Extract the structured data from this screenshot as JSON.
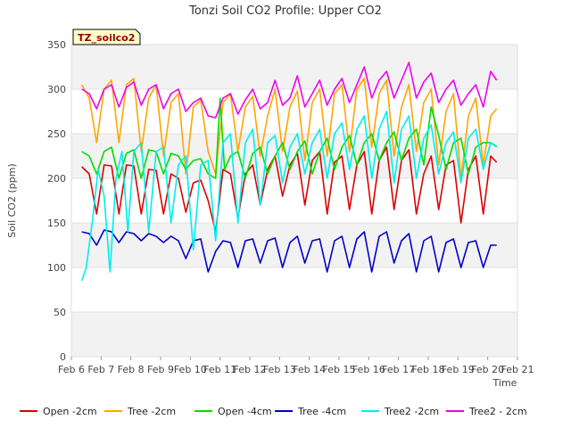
{
  "chart_data": {
    "type": "line",
    "title": "Tonzi Soil CO2 Profile: Upper CO2",
    "xlabel": "Time",
    "ylabel": "Soil CO2 (ppm)",
    "ylim": [
      0,
      350
    ],
    "yticks": [
      0,
      50,
      100,
      150,
      200,
      250,
      300,
      350
    ],
    "xlim": [
      "2019-02-06",
      "2019-02-21"
    ],
    "xticks": [
      "Feb 6",
      "Feb 7",
      "Feb 8",
      "Feb 9",
      "Feb 10",
      "Feb 11",
      "Feb 12",
      "Feb 13",
      "Feb 14",
      "Feb 15",
      "Feb 16",
      "Feb 17",
      "Feb 18",
      "Feb 19",
      "Feb 20",
      "Feb 21"
    ],
    "grid": "horizontal bands",
    "legend_position": "bottom",
    "annotation": "TZ_soilco2",
    "series": [
      {
        "name": "Open -2cm",
        "color": "#dd0000",
        "x": [
          6.35,
          6.6,
          6.85,
          7.1,
          7.35,
          7.6,
          7.85,
          8.1,
          8.35,
          8.6,
          8.85,
          9.1,
          9.35,
          9.6,
          9.85,
          10.1,
          10.35,
          10.6,
          10.85,
          11.1,
          11.35,
          11.6,
          11.85,
          12.1,
          12.35,
          12.6,
          12.85,
          13.1,
          13.35,
          13.6,
          13.85,
          14.1,
          14.35,
          14.6,
          14.85,
          15.1,
          15.35,
          15.6,
          15.85,
          16.1,
          16.35,
          16.6,
          16.85,
          17.1,
          17.35,
          17.6,
          17.85,
          18.1,
          18.35,
          18.6,
          18.85,
          19.1,
          19.35,
          19.6,
          19.85,
          20.1,
          20.3
        ],
        "y": [
          213,
          205,
          160,
          215,
          214,
          160,
          215,
          214,
          160,
          210,
          209,
          160,
          205,
          200,
          162,
          195,
          198,
          175,
          140,
          210,
          205,
          155,
          205,
          215,
          170,
          210,
          225,
          180,
          215,
          228,
          170,
          220,
          230,
          160,
          218,
          225,
          165,
          215,
          230,
          160,
          220,
          235,
          165,
          220,
          232,
          160,
          205,
          225,
          165,
          215,
          220,
          150,
          210,
          225,
          160,
          225,
          218
        ]
      },
      {
        "name": "Tree -2cm",
        "color": "#ffa500",
        "x": [
          6.35,
          6.6,
          6.85,
          7.1,
          7.35,
          7.6,
          7.85,
          8.1,
          8.35,
          8.6,
          8.85,
          9.1,
          9.35,
          9.6,
          9.85,
          10.1,
          10.35,
          10.6,
          10.85,
          11.1,
          11.35,
          11.6,
          11.85,
          12.1,
          12.35,
          12.6,
          12.85,
          13.1,
          13.35,
          13.6,
          13.85,
          14.1,
          14.35,
          14.6,
          14.85,
          15.1,
          15.35,
          15.6,
          15.85,
          16.1,
          16.35,
          16.6,
          16.85,
          17.1,
          17.35,
          17.6,
          17.85,
          18.1,
          18.35,
          18.6,
          18.85,
          19.1,
          19.35,
          19.6,
          19.85,
          20.1,
          20.3
        ],
        "y": [
          305,
          290,
          240,
          300,
          310,
          240,
          305,
          312,
          230,
          290,
          305,
          225,
          285,
          295,
          205,
          280,
          288,
          230,
          205,
          285,
          295,
          230,
          280,
          292,
          225,
          270,
          300,
          230,
          280,
          298,
          220,
          285,
          300,
          225,
          295,
          305,
          230,
          300,
          312,
          235,
          295,
          310,
          225,
          280,
          305,
          230,
          285,
          300,
          215,
          275,
          295,
          200,
          270,
          290,
          215,
          270,
          278
        ]
      },
      {
        "name": "Open -4cm",
        "color": "#00dd00",
        "x": [
          6.35,
          6.6,
          6.85,
          7.1,
          7.35,
          7.6,
          7.85,
          8.1,
          8.35,
          8.6,
          8.85,
          9.1,
          9.35,
          9.6,
          9.85,
          10.1,
          10.35,
          10.6,
          10.85,
          11.0,
          11.15,
          11.35,
          11.6,
          11.85,
          12.1,
          12.35,
          12.6,
          12.85,
          13.1,
          13.35,
          13.6,
          13.85,
          14.1,
          14.35,
          14.6,
          14.85,
          15.1,
          15.35,
          15.6,
          15.85,
          16.1,
          16.35,
          16.6,
          16.85,
          17.1,
          17.35,
          17.6,
          17.85,
          18.1,
          18.35,
          18.6,
          18.85,
          19.1,
          19.35,
          19.6,
          19.85,
          20.1,
          20.3
        ],
        "y": [
          230,
          225,
          205,
          230,
          235,
          200,
          228,
          232,
          200,
          232,
          230,
          205,
          228,
          225,
          210,
          220,
          222,
          205,
          200,
          290,
          210,
          225,
          230,
          200,
          228,
          235,
          205,
          225,
          240,
          210,
          230,
          242,
          205,
          230,
          245,
          210,
          235,
          248,
          215,
          240,
          250,
          220,
          240,
          252,
          220,
          245,
          255,
          215,
          280,
          248,
          210,
          240,
          245,
          205,
          235,
          240,
          240,
          236
        ]
      },
      {
        "name": "Tree -4cm",
        "color": "#0000cc",
        "x": [
          6.35,
          6.6,
          6.85,
          7.1,
          7.35,
          7.6,
          7.85,
          8.1,
          8.35,
          8.6,
          8.85,
          9.1,
          9.35,
          9.6,
          9.85,
          10.1,
          10.35,
          10.6,
          10.85,
          11.1,
          11.35,
          11.6,
          11.85,
          12.1,
          12.35,
          12.6,
          12.85,
          13.1,
          13.35,
          13.6,
          13.85,
          14.1,
          14.35,
          14.6,
          14.85,
          15.1,
          15.35,
          15.6,
          15.85,
          16.1,
          16.35,
          16.6,
          16.85,
          17.1,
          17.35,
          17.6,
          17.85,
          18.1,
          18.35,
          18.6,
          18.85,
          19.1,
          19.35,
          19.6,
          19.85,
          20.1,
          20.3
        ],
        "y": [
          140,
          138,
          125,
          142,
          140,
          128,
          140,
          138,
          130,
          138,
          135,
          128,
          135,
          130,
          110,
          130,
          132,
          95,
          118,
          130,
          128,
          100,
          130,
          132,
          105,
          130,
          133,
          100,
          128,
          135,
          105,
          130,
          132,
          95,
          130,
          135,
          100,
          132,
          140,
          95,
          135,
          140,
          105,
          130,
          138,
          95,
          130,
          135,
          95,
          128,
          132,
          100,
          128,
          130,
          100,
          125,
          125
        ]
      },
      {
        "name": "Tree2 -2cm",
        "color": "#00eeee",
        "x": [
          6.35,
          6.5,
          6.7,
          6.9,
          7.1,
          7.3,
          7.5,
          7.7,
          7.9,
          8.1,
          8.35,
          8.6,
          8.85,
          9.1,
          9.35,
          9.6,
          9.85,
          10.1,
          10.35,
          10.6,
          10.85,
          11.1,
          11.35,
          11.6,
          11.85,
          12.1,
          12.35,
          12.6,
          12.85,
          13.1,
          13.35,
          13.6,
          13.85,
          14.1,
          14.35,
          14.6,
          14.85,
          15.1,
          15.35,
          15.6,
          15.85,
          16.1,
          16.35,
          16.6,
          16.85,
          17.1,
          17.35,
          17.6,
          17.85,
          18.1,
          18.35,
          18.6,
          18.85,
          19.1,
          19.35,
          19.6,
          19.85,
          20.1,
          20.3
        ],
        "y": [
          85,
          100,
          150,
          210,
          180,
          95,
          200,
          230,
          140,
          230,
          240,
          140,
          230,
          235,
          150,
          215,
          225,
          120,
          215,
          220,
          130,
          240,
          250,
          150,
          240,
          255,
          170,
          240,
          248,
          195,
          235,
          250,
          205,
          240,
          255,
          200,
          250,
          262,
          210,
          255,
          270,
          200,
          255,
          275,
          195,
          255,
          270,
          200,
          245,
          260,
          205,
          240,
          252,
          195,
          245,
          255,
          210,
          240,
          235
        ]
      },
      {
        "name": "Tree2 - 2cm",
        "color": "#ee00ee",
        "x": [
          6.35,
          6.6,
          6.85,
          7.1,
          7.35,
          7.6,
          7.85,
          8.1,
          8.35,
          8.6,
          8.85,
          9.1,
          9.35,
          9.6,
          9.85,
          10.1,
          10.35,
          10.6,
          10.85,
          11.1,
          11.35,
          11.6,
          11.85,
          12.1,
          12.35,
          12.6,
          12.85,
          13.1,
          13.35,
          13.6,
          13.85,
          14.1,
          14.35,
          14.6,
          14.85,
          15.1,
          15.35,
          15.6,
          15.85,
          16.1,
          16.35,
          16.6,
          16.85,
          17.1,
          17.35,
          17.6,
          17.85,
          18.1,
          18.35,
          18.6,
          18.85,
          19.1,
          19.35,
          19.6,
          19.85,
          20.1,
          20.3
        ],
        "y": [
          300,
          295,
          278,
          300,
          305,
          280,
          302,
          308,
          282,
          300,
          305,
          278,
          295,
          300,
          275,
          285,
          290,
          270,
          268,
          290,
          295,
          272,
          288,
          300,
          278,
          285,
          310,
          282,
          290,
          315,
          280,
          295,
          310,
          282,
          300,
          312,
          285,
          305,
          325,
          290,
          310,
          320,
          290,
          310,
          330,
          290,
          308,
          318,
          285,
          300,
          310,
          282,
          295,
          305,
          280,
          320,
          310
        ]
      }
    ]
  }
}
